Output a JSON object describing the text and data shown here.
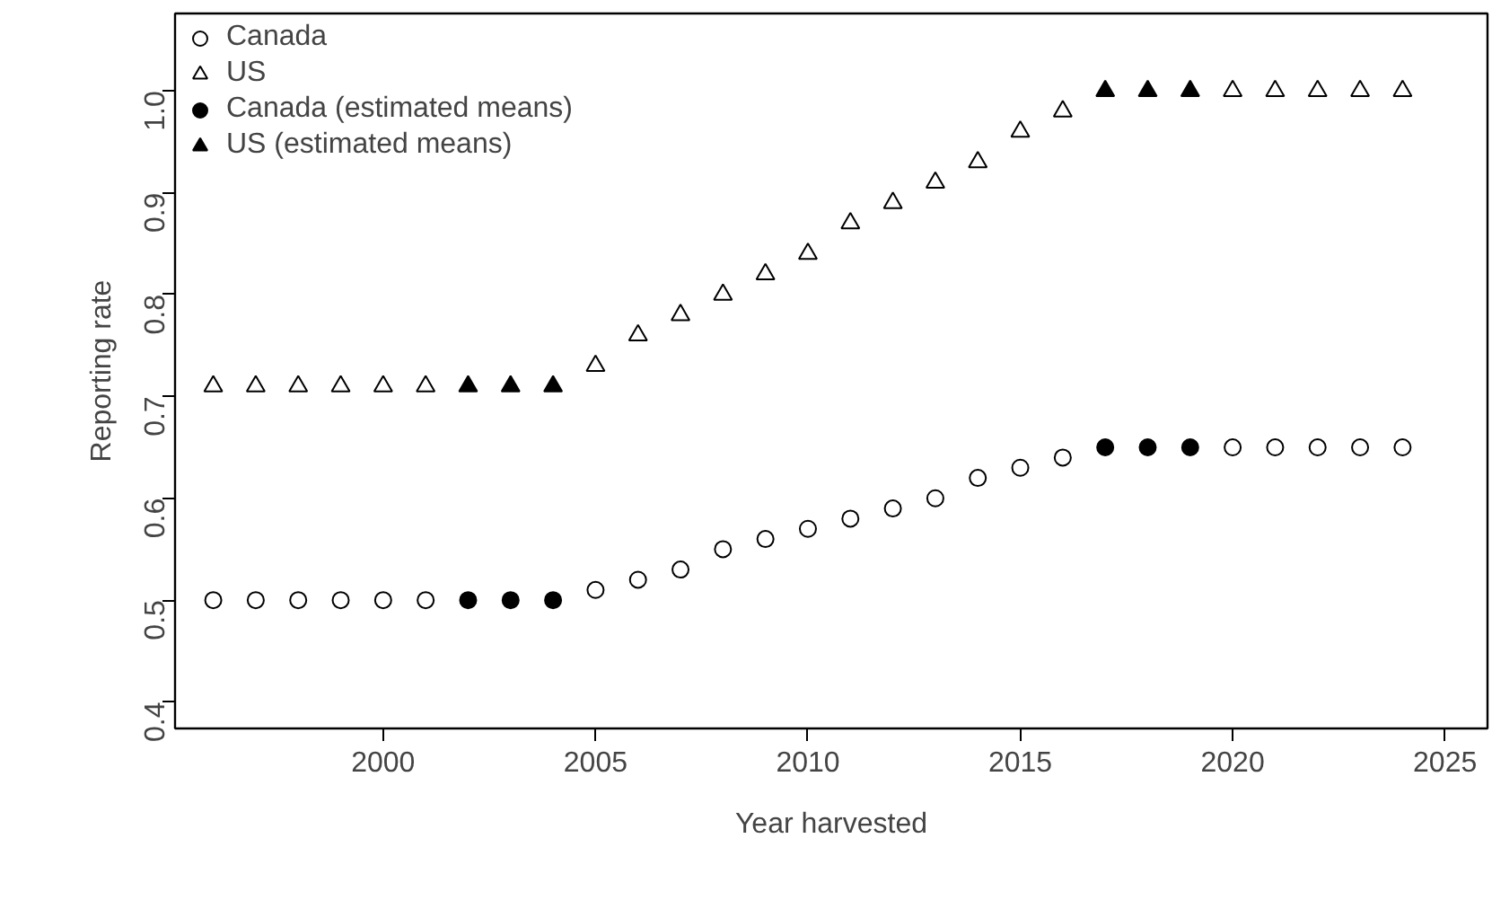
{
  "chart_data": {
    "type": "scatter",
    "xlabel": "Year harvested",
    "ylabel": "Reporting rate",
    "x": [
      1996,
      1997,
      1998,
      1999,
      2000,
      2001,
      2002,
      2003,
      2004,
      2005,
      2006,
      2007,
      2008,
      2009,
      2010,
      2011,
      2012,
      2013,
      2014,
      2015,
      2016,
      2017,
      2018,
      2019,
      2020,
      2021,
      2022,
      2023,
      2024
    ],
    "series": [
      {
        "name": "Canada",
        "color": "#ffffff",
        "marker": "circle",
        "values": [
          0.5,
          0.5,
          0.5,
          0.5,
          0.5,
          0.5,
          null,
          null,
          null,
          0.51,
          0.52,
          0.53,
          0.55,
          0.56,
          0.57,
          0.58,
          0.59,
          0.6,
          0.62,
          0.63,
          0.64,
          null,
          null,
          null,
          0.65,
          0.65,
          0.65,
          0.65,
          0.65
        ]
      },
      {
        "name": "US",
        "color": "#ffffff",
        "marker": "triangle",
        "values": [
          0.71,
          0.71,
          0.71,
          0.71,
          0.71,
          0.71,
          null,
          null,
          null,
          0.73,
          0.76,
          0.78,
          0.8,
          0.82,
          0.84,
          0.87,
          0.89,
          0.91,
          0.93,
          0.96,
          0.98,
          null,
          null,
          null,
          1.0,
          1.0,
          1.0,
          1.0,
          1.0
        ]
      },
      {
        "name": "Canada (estimated means)",
        "color": "#000000",
        "marker": "circle",
        "values": [
          null,
          null,
          null,
          null,
          null,
          null,
          0.5,
          0.5,
          0.5,
          null,
          null,
          null,
          null,
          null,
          null,
          null,
          null,
          null,
          null,
          null,
          null,
          0.65,
          0.65,
          0.65,
          null,
          null,
          null,
          null,
          null
        ]
      },
      {
        "name": "US (estimated means)",
        "color": "#000000",
        "marker": "triangle",
        "values": [
          null,
          null,
          null,
          null,
          null,
          null,
          0.71,
          0.71,
          0.71,
          null,
          null,
          null,
          null,
          null,
          null,
          null,
          null,
          null,
          null,
          null,
          null,
          1.0,
          1.0,
          1.0,
          null,
          null,
          null,
          null,
          null
        ]
      }
    ],
    "xlim": [
      1995.1,
      2026
    ],
    "ylim": [
      0.374,
      1.076
    ],
    "xticks": [
      2000,
      2005,
      2010,
      2015,
      2020,
      2025
    ],
    "yticks": [
      0.4,
      0.5,
      0.6,
      0.7,
      0.8,
      0.9,
      {
        "value": 1.0,
        "label": "1.0"
      }
    ],
    "grid": false,
    "legend": "top left"
  }
}
